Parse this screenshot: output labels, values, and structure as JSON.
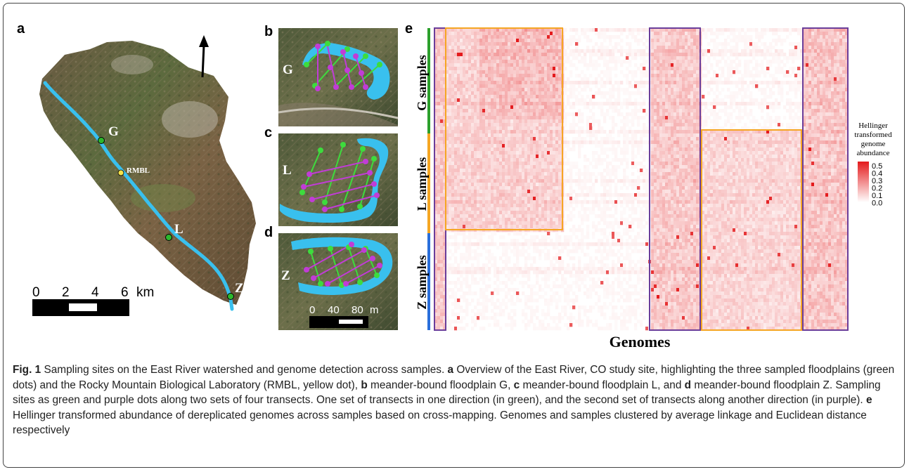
{
  "panels": {
    "a": {
      "letter": "a",
      "sites": [
        "G",
        "L",
        "Z"
      ],
      "station": "RMBL",
      "scale": {
        "ticks": [
          "0",
          "2",
          "4",
          "6"
        ],
        "unit": "km"
      }
    },
    "b": {
      "letter": "b",
      "site": "G"
    },
    "c": {
      "letter": "c",
      "site": "L"
    },
    "d": {
      "letter": "d",
      "site": "Z",
      "scale": {
        "ticks": [
          "0",
          "40",
          "80"
        ],
        "unit": "m"
      }
    },
    "e": {
      "letter": "e",
      "row_groups": [
        {
          "label": "G samples",
          "color": "#2ca02c"
        },
        {
          "label": "L samples",
          "color": "#f5a623"
        },
        {
          "label": "Z samples",
          "color": "#2a6fdb"
        }
      ],
      "xlabel": "Genomes",
      "legend": {
        "title_lines": [
          "Hellinger",
          "transformed",
          "genome",
          "abundance"
        ],
        "ticks": [
          "0.5",
          "0.4",
          "0.3",
          "0.2",
          "0.1",
          "0.0"
        ]
      },
      "box_colors": {
        "purple": "#6a3d9a",
        "orange": "#f5a623"
      }
    }
  },
  "chart_data": {
    "type": "heatmap",
    "title": "",
    "xlabel": "Genomes",
    "ylabel": "",
    "row_groups": [
      "G samples",
      "L samples",
      "Z samples"
    ],
    "color_scale": {
      "min": 0.0,
      "max": 0.5,
      "low_color": "#ffffff",
      "high_color": "#e41a1c"
    },
    "legend_title": "Hellinger transformed genome abundance",
    "legend_placement": "right"
  },
  "caption": {
    "label": "Fig. 1",
    "text": [
      {
        "bold": false,
        "t": " Sampling sites on the East River watershed and genome detection across samples. "
      },
      {
        "bold": true,
        "t": "a"
      },
      {
        "bold": false,
        "t": " Overview of the East River, CO study site, highlighting the three sampled floodplains (green dots) and the Rocky Mountain Biological Laboratory (RMBL, yellow dot), "
      },
      {
        "bold": true,
        "t": "b"
      },
      {
        "bold": false,
        "t": " meander-bound floodplain G, "
      },
      {
        "bold": true,
        "t": "c"
      },
      {
        "bold": false,
        "t": " meander-bound floodplain L, and "
      },
      {
        "bold": true,
        "t": "d"
      },
      {
        "bold": false,
        "t": " meander-bound floodplain Z. Sampling sites as green and purple dots along two sets of four transects. One set of transects in one direction (in green), and the second set of transects along another direction (in purple). "
      },
      {
        "bold": true,
        "t": "e"
      },
      {
        "bold": false,
        "t": " Hellinger transformed abundance of dereplicated genomes across samples based on cross-mapping. Genomes and samples clustered by average linkage and Euclidean distance respectively"
      }
    ]
  }
}
